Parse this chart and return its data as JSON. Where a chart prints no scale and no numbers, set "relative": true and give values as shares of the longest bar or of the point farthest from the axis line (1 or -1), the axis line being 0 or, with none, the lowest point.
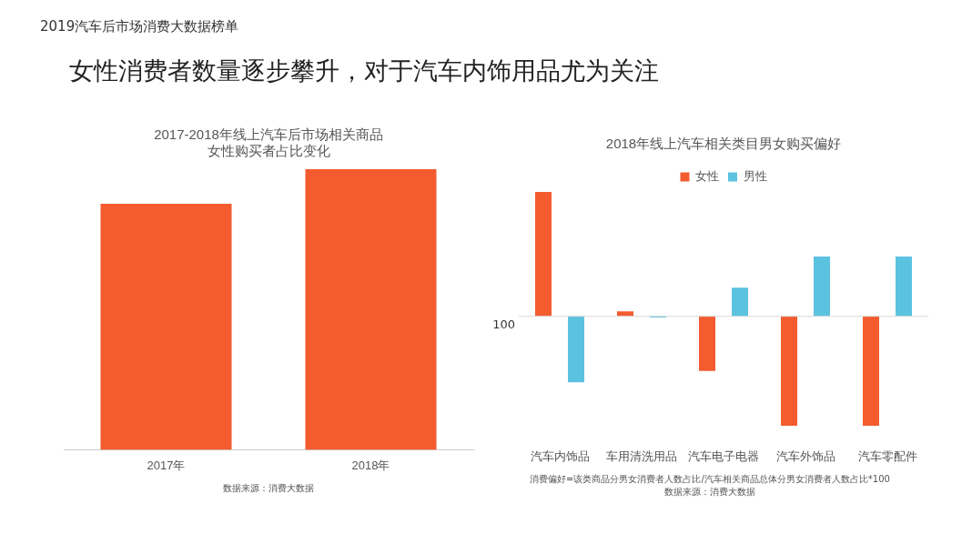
{
  "chart_data": [
    {
      "type": "other",
      "title": "女性消费者数量逐步攀升，对于汽车内饰用品尤为关注",
      "subtitle": "2019汽车后市场消费大数据榜单"
    },
    {
      "type": "bar",
      "title": "2017-2018年线上汽车后市场相关商品女性购买者占比变化",
      "categories": [
        "2017年",
        "2018年"
      ],
      "relative": true,
      "values": [
        0.877,
        1
      ],
      "color": "#f45b2f",
      "grid": false,
      "legend": false,
      "annotations": [
        "数据来源：消费大数据"
      ]
    },
    {
      "type": "bar",
      "title": "2018年线上汽车相关类目男女购买偏好",
      "categories": [
        "汽车内饰品",
        "车用清洗用品",
        "汽车电子电器",
        "汽车外饰品",
        "汽车零配件"
      ],
      "relative": true,
      "grid": false,
      "legend": "top",
      "series": [
        {
          "name": "女性",
          "color": "#f45b2f",
          "values": [
            1,
            0.04,
            -0.44,
            -0.88,
            -0.88
          ]
        },
        {
          "name": "男性",
          "color": "#5bc2e0",
          "values": [
            -0.53,
            -0.01,
            0.23,
            0.48,
            0.48
          ]
        }
      ],
      "ref_lines": [
        {
          "axis": "y",
          "value": 0,
          "color": "#d9d9d9"
        }
      ],
      "annotations": [
        "100",
        "消费偏好=该类商品分男女消费者人数占比/汽车相关商品总体分男女消费者人数占比*100",
        "数据来源：消费大数据"
      ]
    }
  ]
}
